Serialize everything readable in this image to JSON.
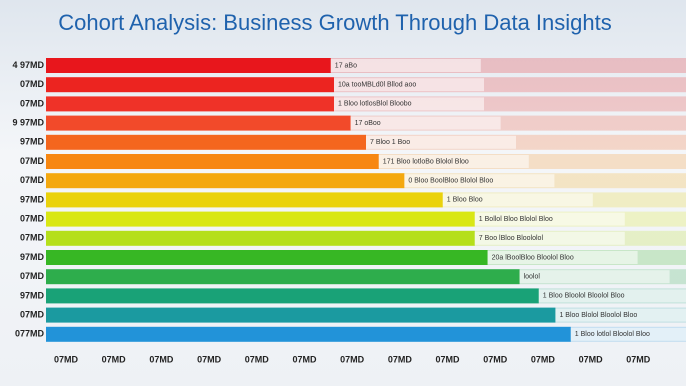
{
  "chart_data": {
    "type": "cohort",
    "title": "Cohort Analysis: Business Growth  Through Data Insights",
    "categories": [
      "4 97MD",
      "07MD",
      "07MD",
      "9 97MD",
      "97MD",
      "07MD",
      "07MD",
      "97MD",
      "07MD",
      "07MD",
      "97MD",
      "07MD",
      "97MD",
      "07MD",
      "077MD"
    ],
    "colors": [
      "#e8161c",
      "#ec2420",
      "#ef3228",
      "#f24a2a",
      "#f4661e",
      "#f78712",
      "#f4a80f",
      "#ead20c",
      "#d9e714",
      "#b5df1b",
      "#37b724",
      "#2ead4c",
      "#19a277",
      "#1b9aa0",
      "#2293d9"
    ],
    "series": [
      {
        "values": [
          44.5,
          45,
          45,
          47.6,
          50,
          52,
          56,
          62,
          67,
          67,
          69,
          74,
          77,
          79.6,
          82
        ]
      },
      {
        "values": [
          55.5,
          55,
          55,
          52.4,
          50,
          48,
          44,
          38,
          33,
          33,
          31,
          26,
          23,
          20.4,
          18
        ]
      }
    ],
    "annotations": [
      "17 aBo",
      "10a  tooMBLd0l Bllod aoo",
      "1 Bloo  lotlosBlol Bloobo",
      "17 oBoo",
      "7 Bloo  1 Boo",
      "171 Bloo  lotloBo Blolol Bloo",
      "0  Bloo  BoolBloo Blolol Bloo",
      "1 Bloo Bloo",
      "1 Bollol Bloo Blolol Bloo",
      "7 Boo lBloo Bloololol",
      "20a  lBoolBloo Bloolol Bloo",
      "loolol",
      "1 Bloo  Bloolol Bloolol Bloo",
      "1 Bloo  Blolol Bloolol Bloo",
      "1 Bloo  lotlol Bloolol Bloo"
    ],
    "x_labels": [
      "07MD",
      "07MD",
      "07MD",
      "07MD",
      "07MD",
      "07MD",
      "07MD",
      "07MD",
      "07MD",
      "07MD",
      "07MD",
      "07MD",
      "07MD"
    ],
    "xlim": [
      0,
      100
    ]
  }
}
